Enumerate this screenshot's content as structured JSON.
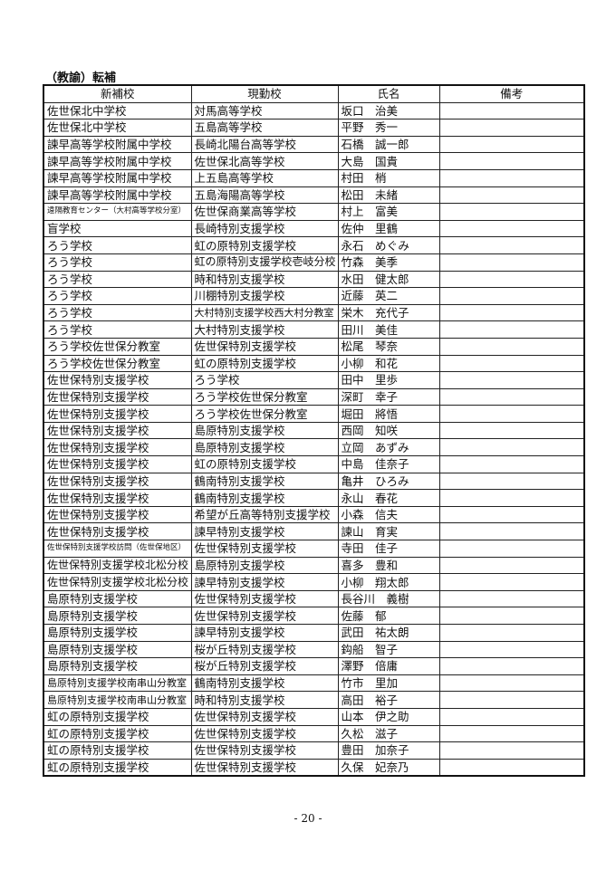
{
  "header": {
    "title": "（教諭）転補"
  },
  "table": {
    "columns": [
      "新補校",
      "現勤校",
      "氏名",
      "備考"
    ],
    "rows": [
      [
        "佐世保北中学校",
        "対馬高等学校",
        "坂口　治美"
      ],
      [
        "佐世保北中学校",
        "五島高等学校",
        "平野　秀一"
      ],
      [
        "諫早高等学校附属中学校",
        "長崎北陽台高等学校",
        "石橋　誠一郎"
      ],
      [
        "諫早高等学校附属中学校",
        "佐世保北高等学校",
        "大島　国貴"
      ],
      [
        "諫早高等学校附属中学校",
        "上五島高等学校",
        "村田　梢"
      ],
      [
        "諫早高等学校附属中学校",
        "五島海陽高等学校",
        "松田　未緒"
      ],
      [
        "遠隔教育センター（大村高等学校分室）",
        "佐世保商業高等学校",
        "村上　富美"
      ],
      [
        "盲学校",
        "長崎特別支援学校",
        "佐仲　里鶴"
      ],
      [
        "ろう学校",
        "虹の原特別支援学校",
        "永石　めぐみ"
      ],
      [
        "ろう学校",
        "虹の原特別支援学校壱岐分校",
        "竹森　美季"
      ],
      [
        "ろう学校",
        "時和特別支援学校",
        "水田　健太郎"
      ],
      [
        "ろう学校",
        "川棚特別支援学校",
        "近藤　英二"
      ],
      [
        "ろう学校",
        "大村特別支援学校西大村分教室",
        "栄木　充代子"
      ],
      [
        "ろう学校",
        "大村特別支援学校",
        "田川　美佳"
      ],
      [
        "ろう学校佐世保分教室",
        "佐世保特別支援学校",
        "松尾　琴奈"
      ],
      [
        "ろう学校佐世保分教室",
        "虹の原特別支援学校",
        "小柳　和花"
      ],
      [
        "佐世保特別支援学校",
        "ろう学校",
        "田中　里歩"
      ],
      [
        "佐世保特別支援学校",
        "ろう学校佐世保分教室",
        "深町　幸子"
      ],
      [
        "佐世保特別支援学校",
        "ろう学校佐世保分教室",
        "堀田　將悟"
      ],
      [
        "佐世保特別支援学校",
        "島原特別支援学校",
        "西岡　知咲"
      ],
      [
        "佐世保特別支援学校",
        "島原特別支援学校",
        "立岡　あずみ"
      ],
      [
        "佐世保特別支援学校",
        "虹の原特別支援学校",
        "中島　佳奈子"
      ],
      [
        "佐世保特別支援学校",
        "鶴南特別支援学校",
        "亀井　ひろみ"
      ],
      [
        "佐世保特別支援学校",
        "鶴南特別支援学校",
        "永山　春花"
      ],
      [
        "佐世保特別支援学校",
        "希望が丘高等特別支援学校",
        "小森　信夫"
      ],
      [
        "佐世保特別支援学校",
        "諫早特別支援学校",
        "諫山　育実"
      ],
      [
        "佐世保特別支援学校訪問（佐世保地区）",
        "佐世保特別支援学校",
        "寺田　佳子"
      ],
      [
        "佐世保特別支援学校北松分校",
        "島原特別支援学校",
        "喜多　豊和"
      ],
      [
        "佐世保特別支援学校北松分校",
        "諫早特別支援学校",
        "小柳　翔太郎"
      ],
      [
        "島原特別支援学校",
        "佐世保特別支援学校",
        "長谷川　義樹"
      ],
      [
        "島原特別支援学校",
        "佐世保特別支援学校",
        "佐藤　郁"
      ],
      [
        "島原特別支援学校",
        "諫早特別支援学校",
        "武田　祐太朗"
      ],
      [
        "島原特別支援学校",
        "桜が丘特別支援学校",
        "鈎船　智子"
      ],
      [
        "島原特別支援学校",
        "桜が丘特別支援学校",
        "澤野　倍庸"
      ],
      [
        "島原特別支援学校南串山分教室",
        "鶴南特別支援学校",
        "竹市　里加"
      ],
      [
        "島原特別支援学校南串山分教室",
        "時和特別支援学校",
        "高田　裕子"
      ],
      [
        "虹の原特別支援学校",
        "佐世保特別支援学校",
        "山本　伊之助"
      ],
      [
        "虹の原特別支援学校",
        "佐世保特別支援学校",
        "久松　滋子"
      ],
      [
        "虹の原特別支援学校",
        "佐世保特別支援学校",
        "豊田　加奈子"
      ],
      [
        "虹の原特別支援学校",
        "佐世保特別支援学校",
        "久保　妃奈乃"
      ]
    ]
  },
  "footer": {
    "page_number": "- 20 -"
  }
}
